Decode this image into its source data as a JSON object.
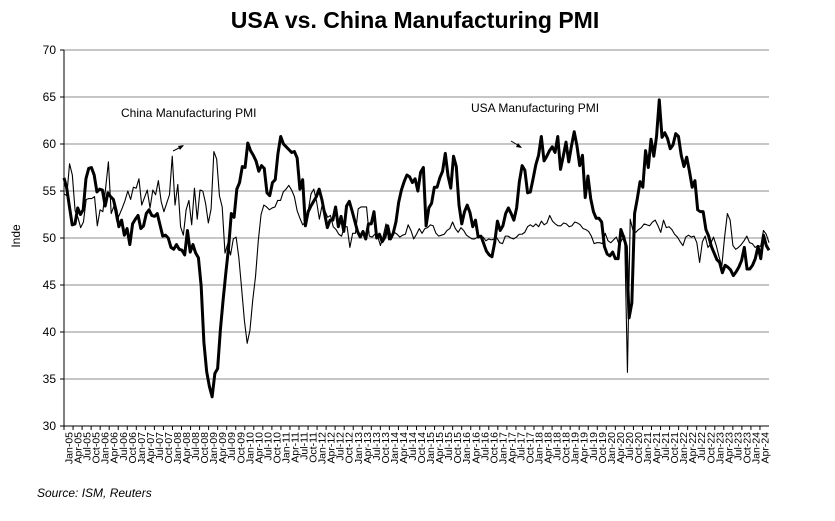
{
  "chart_data": {
    "type": "line",
    "title": "USA vs. China Manufacturing PMI",
    "xlabel": "",
    "ylabel": "Inde",
    "ylim": [
      30,
      70
    ],
    "yticks": [
      30,
      35,
      40,
      45,
      50,
      55,
      60,
      65,
      70
    ],
    "grid": true,
    "x_labels": [
      "Jan-05",
      "Apr-05",
      "Jul-05",
      "Oct-05",
      "Jan-06",
      "Apr-06",
      "Jul-06",
      "Oct-06",
      "Jan-07",
      "Apr-07",
      "Jul-07",
      "Oct-07",
      "Jan-08",
      "Apr-08",
      "Jul-08",
      "Oct-08",
      "Jan-09",
      "Apr-09",
      "Jul-09",
      "Oct-09",
      "Jan-10",
      "Apr-10",
      "Jul-10",
      "Oct-10",
      "Jan-11",
      "Apr-11",
      "Jul-11",
      "Oct-11",
      "Jan-12",
      "Apr-12",
      "Jul-12",
      "Oct-12",
      "Jan-13",
      "Apr-13",
      "Jul-13",
      "Oct-13",
      "Jan-14",
      "Apr-14",
      "Jul-14",
      "Oct-14",
      "Jan-15",
      "Apr-15",
      "Jul-15",
      "Oct-15",
      "Jan-16",
      "Apr-16",
      "Jul-16",
      "Oct-16",
      "Jan-17",
      "Apr-17",
      "Jul-17",
      "Oct-17",
      "Jan-18",
      "Apr-18",
      "Jul-18",
      "Oct-18",
      "Jan-19",
      "Apr-19",
      "Jul-19",
      "Oct-19",
      "Jan-20",
      "Apr-20",
      "Jul-20",
      "Oct-20",
      "Jan-21",
      "Apr-21",
      "Jul-21",
      "Oct-21",
      "Jan-22",
      "Apr-22",
      "Jul-22",
      "Oct-22",
      "Jan-23",
      "Apr-23",
      "Jul-23",
      "Oct-23",
      "Jan-24",
      "Apr-24"
    ],
    "series": [
      {
        "name": "USA Manufacturing PMI",
        "line_weight": "thick",
        "values": [
          56.4,
          55.3,
          53.3,
          51.4,
          51.5,
          53.2,
          52.5,
          53.0,
          56.3,
          57.4,
          57.5,
          56.7,
          54.9,
          55.2,
          55.1,
          53.4,
          54.8,
          54.4,
          54.1,
          52.9,
          51.2,
          51.9,
          50.3,
          51.0,
          49.3,
          51.5,
          52.0,
          52.4,
          51.0,
          51.3,
          52.6,
          53.0,
          52.4,
          52.3,
          52.6,
          51.4,
          50.2,
          50.3,
          50.0,
          49.0,
          48.8,
          49.3,
          48.8,
          48.7,
          48.2,
          50.8,
          48.5,
          49.3,
          48.4,
          47.9,
          44.9,
          38.9,
          35.8,
          34.2,
          33.1,
          35.6,
          36.1,
          40.2,
          43.4,
          46.3,
          49.0,
          52.6,
          52.2,
          55.2,
          55.9,
          57.6,
          57.5,
          60.1,
          59.3,
          58.8,
          58.2,
          57.1,
          57.7,
          57.4,
          54.8,
          54.5,
          55.9,
          56.2,
          59.0,
          60.8,
          60.0,
          59.7,
          59.4,
          59.1,
          59.2,
          58.5,
          55.2,
          56.2,
          51.3,
          52.8,
          53.4,
          53.9,
          54.4,
          55.2,
          54.1,
          52.6,
          51.1,
          51.9,
          51.9,
          53.3,
          51.2,
          52.3,
          50.7,
          53.4,
          53.9,
          52.9,
          51.8,
          50.7,
          50.1,
          50.7,
          49.9,
          51.5,
          51.5,
          52.8,
          50.0,
          50.4,
          49.6,
          50.1,
          51.3,
          49.9,
          50.5,
          51.7,
          53.8,
          55.1,
          56.0,
          56.7,
          56.5,
          55.9,
          56.3,
          55.0,
          57.0,
          57.5,
          51.3,
          53.2,
          53.7,
          55.4,
          55.4,
          56.4,
          57.1,
          59.0,
          56.6,
          55.3,
          58.7,
          57.6,
          53.5,
          51.5,
          52.8,
          53.5,
          52.7,
          51.2,
          51.9,
          50.1,
          50.2,
          49.4,
          48.6,
          48.2,
          48.0,
          49.5,
          51.8,
          50.8,
          51.3,
          52.6,
          53.2,
          52.6,
          51.9,
          53.2,
          56.0,
          57.7,
          57.2,
          54.8,
          54.9,
          56.3,
          57.8,
          58.8,
          60.8,
          58.2,
          58.7,
          59.3,
          59.7,
          59.1,
          60.8,
          57.3,
          58.7,
          60.2,
          58.1,
          59.8,
          61.3,
          59.8,
          57.7,
          58.8,
          54.3,
          56.6,
          54.2,
          52.8,
          52.1,
          52.1,
          51.7,
          49.1,
          48.3,
          48.1,
          48.5,
          47.8,
          47.8,
          50.9,
          50.1,
          49.1,
          41.5,
          43.1,
          52.6,
          54.2,
          56.0,
          55.4,
          59.3,
          57.5,
          60.5,
          58.7,
          60.8,
          64.7,
          60.7,
          61.2,
          60.6,
          59.5,
          59.9,
          61.1,
          60.8,
          58.8,
          57.6,
          58.6,
          57.1,
          55.4,
          56.1,
          53.0,
          52.8,
          52.8,
          50.9,
          50.2,
          49.1,
          48.4,
          47.7,
          47.4,
          46.3,
          47.1,
          46.9,
          46.6,
          46.0,
          46.4,
          46.9,
          47.6,
          49.0,
          46.7,
          46.7,
          47.1,
          47.8,
          49.1,
          47.8,
          50.3,
          49.2,
          48.7
        ]
      },
      {
        "name": "China Manufacturing PMI",
        "line_weight": "thin",
        "values": [
          54.7,
          54.5,
          57.9,
          56.7,
          52.9,
          52.2,
          51.1,
          51.7,
          54.1,
          54.2,
          54.2,
          54.4,
          51.3,
          53.0,
          52.8,
          55.3,
          58.1,
          52.6,
          53.4,
          51.8,
          52.5,
          53.2,
          54.0,
          55.0,
          54.1,
          55.4,
          55.3,
          56.3,
          53.5,
          54.3,
          55.1,
          53.2,
          55.1,
          54.6,
          56.1,
          53.9,
          52.8,
          53.7,
          54.6,
          58.7,
          53.5,
          55.7,
          51.2,
          50.3,
          53.0,
          54.0,
          51.4,
          55.3,
          52.0,
          55.1,
          55.0,
          53.7,
          51.6,
          53.1,
          59.2,
          58.4,
          54.5,
          53.3,
          48.4,
          49.4,
          48.2,
          49.9,
          50.1,
          47.9,
          44.6,
          41.2,
          38.8,
          40.2,
          43.4,
          45.9,
          49.7,
          52.5,
          53.5,
          53.3,
          53.0,
          53.2,
          53.3,
          54.0,
          54.0,
          54.9,
          55.2,
          55.6,
          55.1,
          54.4,
          52.9,
          52.1,
          51.4,
          51.7,
          52.9,
          54.7,
          55.2,
          53.9,
          52.0,
          53.5,
          52.9,
          52.2,
          52.4,
          51.2,
          50.9,
          50.4,
          50.2,
          51.2,
          51.2,
          49.0,
          50.5,
          50.5,
          53.1,
          53.3,
          53.3,
          53.3,
          50.2,
          50.1,
          50.4,
          50.2,
          49.2,
          50.2,
          51.5,
          49.8,
          50.1,
          50.6,
          50.4,
          50.1,
          50.3,
          50.4,
          51.4,
          50.8,
          49.9,
          50.4,
          51.0,
          50.5,
          51.0,
          51.1,
          51.4,
          51.3,
          50.5,
          50.2,
          50.3,
          50.4,
          50.8,
          51.0,
          51.7,
          51.0,
          50.6,
          51.1,
          50.8,
          50.3,
          50.1,
          49.9,
          49.9,
          50.1,
          50.1,
          50.1,
          49.7,
          49.9,
          49.8,
          49.9,
          50.0,
          49.5,
          49.4,
          50.2,
          50.2,
          50.0,
          49.9,
          50.1,
          50.4,
          50.4,
          50.6,
          51.2,
          51.4,
          51.2,
          51.5,
          51.2,
          51.8,
          51.4,
          51.6,
          52.4,
          51.8,
          51.5,
          51.3,
          51.3,
          51.6,
          51.5,
          51.2,
          51.3,
          51.7,
          51.6,
          51.4,
          51.0,
          50.9,
          50.7,
          50.2,
          49.4,
          49.5,
          49.5,
          49.4,
          50.5,
          49.7,
          49.5,
          49.8,
          50.1,
          49.3,
          49.8,
          50.2,
          35.7,
          52.0,
          50.8,
          50.6,
          50.9,
          51.1,
          51.5,
          51.4,
          51.3,
          51.7,
          51.9,
          51.3,
          50.6,
          51.9,
          51.1,
          51.2,
          50.9,
          50.4,
          50.1,
          49.6,
          49.2,
          50.1,
          50.3,
          50.1,
          50.2,
          49.5,
          47.4,
          49.6,
          50.2,
          49.0,
          49.4,
          50.1,
          49.2,
          48.0,
          47.0,
          50.1,
          52.6,
          51.9,
          49.2,
          48.8,
          49.0,
          49.3,
          49.7,
          50.2,
          49.5,
          49.4,
          49.0,
          49.2,
          49.1,
          50.8,
          50.4,
          49.5
        ]
      }
    ],
    "annotations": [
      {
        "text": "China Manufacturing PMI",
        "target_series": "China Manufacturing PMI"
      },
      {
        "text": "USA Manufacturing PMI",
        "target_series": "USA Manufacturing PMI"
      }
    ]
  },
  "source": "Source:  ISM, Reuters"
}
